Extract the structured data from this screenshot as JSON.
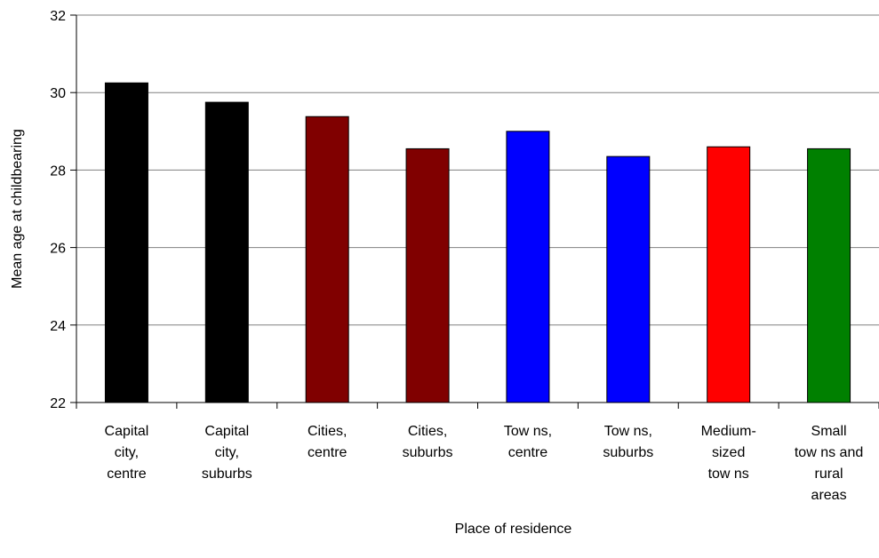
{
  "chart_data": {
    "type": "bar",
    "title": "",
    "xlabel": "Place of residence",
    "ylabel": "Mean age at childbearing",
    "ylim": [
      22,
      32
    ],
    "yticks": [
      22,
      24,
      26,
      28,
      30,
      32
    ],
    "grid": true,
    "categories": [
      [
        "Capital",
        "city,",
        "centre"
      ],
      [
        "Capital",
        "city,",
        "suburbs"
      ],
      [
        "Cities,",
        "centre"
      ],
      [
        "Cities,",
        "suburbs"
      ],
      [
        "Tow ns,",
        "centre"
      ],
      [
        "Tow ns,",
        "suburbs"
      ],
      [
        "Medium-",
        "sized",
        "tow ns"
      ],
      [
        "Small",
        "tow ns and",
        "rural",
        "areas"
      ]
    ],
    "values": [
      30.25,
      29.75,
      29.38,
      28.55,
      29.0,
      28.35,
      28.6,
      28.55
    ],
    "colors": [
      "#000000",
      "#000000",
      "#800000",
      "#800000",
      "#0000ff",
      "#0000ff",
      "#ff0000",
      "#008000"
    ]
  }
}
